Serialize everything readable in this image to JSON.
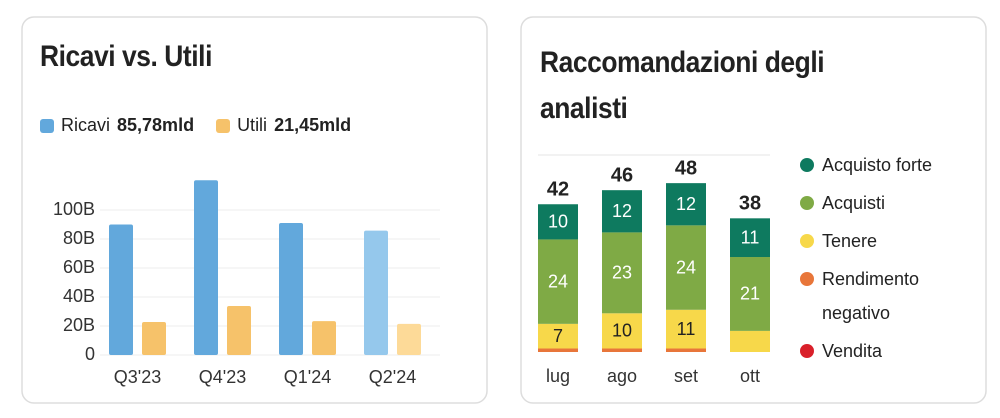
{
  "chart_data": [
    {
      "type": "bar",
      "title": "Ricavi vs. Utili",
      "categories": [
        "Q3'23",
        "Q4'23",
        "Q1'24",
        "Q2'24"
      ],
      "highlight_category": "Q2'24",
      "series": [
        {
          "name": "Ricavi",
          "legend_value": "85,78mld",
          "color": "#62a8dc",
          "highlight_color": "#95c8ec",
          "values": [
            90,
            120.5,
            91,
            85.78
          ]
        },
        {
          "name": "Utili",
          "legend_value": "21,45mld",
          "color": "#f6c26a",
          "highlight_color": "#fdda98",
          "values": [
            22.8,
            33.8,
            23.4,
            21.45
          ]
        }
      ],
      "ylim": [
        0,
        125
      ],
      "yticks": [
        0,
        {
          "value": 20,
          "label": "20B"
        },
        {
          "value": 40,
          "label": "40B"
        },
        {
          "value": 60,
          "label": "60B"
        },
        {
          "value": 80,
          "label": "80B"
        },
        {
          "value": 100,
          "label": "100B"
        }
      ],
      "grid": true
    },
    {
      "type": "stacked_bar",
      "title": "Raccomandazioni degli analisti",
      "categories": [
        "lug",
        "ago",
        "set",
        "ott"
      ],
      "totals": [
        42,
        46,
        48,
        38
      ],
      "series": [
        {
          "name": "Acquisto forte",
          "color": "#0e7a5f",
          "values": [
            10,
            12,
            12,
            11
          ]
        },
        {
          "name": "Acquisti",
          "color": "#7faa45",
          "values": [
            24,
            23,
            24,
            21
          ]
        },
        {
          "name": "Tenere",
          "color": "#f7d84a",
          "values": [
            7,
            10,
            11,
            6
          ]
        },
        {
          "name": "Rendimento negativo",
          "color": "#e8763a",
          "values": [
            1,
            1,
            1,
            0
          ]
        },
        {
          "name": "Vendita",
          "color": "#d9202a",
          "values": [
            0,
            0,
            0,
            0
          ]
        }
      ],
      "ylim": [
        0,
        56
      ],
      "grid": true
    }
  ]
}
